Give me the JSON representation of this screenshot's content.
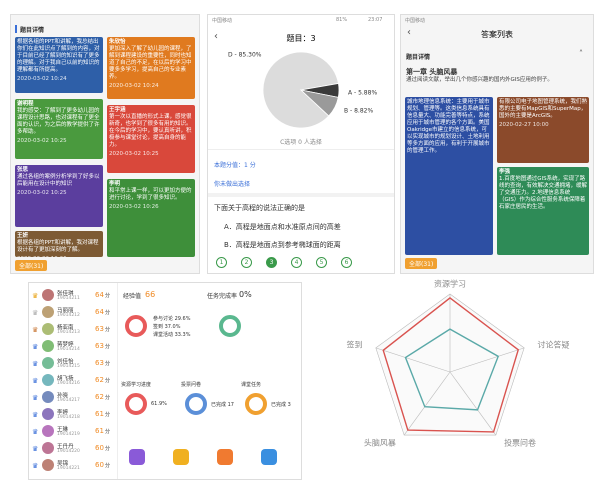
{
  "panel_left": {
    "header": "题目详情",
    "cards": [
      {
        "name": "",
        "text": "根据各组的PPT和讲解，我总结出你们在此知识点了解到的内容，对于目前已经了解到的知识有了更多的理解。对于我自己以前的知识的理解都有所提高。",
        "date": "2020-03-02 10:24",
        "color": "#2e5fa8"
      },
      {
        "name": "谢明程",
        "text": "我的感受：了解到了更多幼儿园的课程设计思路，也对课程有了更全面的认识，为之后的教学提供了许多帮助。",
        "date": "2020-03-02 10:25",
        "color": "#4a9a3e"
      },
      {
        "name": "张思",
        "text": "通过各组的案例分析学到了好多以后能用在设计中的知识",
        "date": "2020-03-02 10:25",
        "color": "#5b3e9e"
      },
      {
        "name": "王妍",
        "text": "根据各组的PPT和讲解，我对课程设计有了更加深刻的了解。",
        "date": "2020-03-02 10:26",
        "color": "#7d5a34"
      },
      {
        "name": "朱欣怡",
        "text": "更加深入了解了幼儿园的课程，了解到课程建设的重要性，同时也知道了自己的不足，在以后的学习中要多多学习，提高自己的专业素养。",
        "date": "2020-03-02 10:24",
        "color": "#e07a1f"
      },
      {
        "name": "王宇涵",
        "text": "第一次以直播的形式上课，感觉很新奇，也学到了很多有用的知识。在今后的学习中，要认真听讲，积极参与课堂讨论，提高自身的能力。",
        "date": "2020-03-02 10:25",
        "color": "#d9483b"
      },
      {
        "name": "李明",
        "text": "和平常上课一样，可以更加方便的进行讨论，学到了很多知识。",
        "date": "2020-03-02 10:26",
        "color": "#3e8f3a"
      }
    ],
    "button": "全部(31)"
  },
  "panel_mid": {
    "carrier": "中国移动",
    "battery": "81%",
    "time": "23:07",
    "title": "题目：3",
    "note": "C选项 0 人选择",
    "score": "本题分值：1 分",
    "status": "你未做出选择",
    "question": "下面关于高程的说法正确的是",
    "options": [
      "A．高程是地面点和水准原点间的高差",
      "B．高程是地面点到参考椭球面的距离"
    ],
    "pages": [
      "1",
      "2",
      "3",
      "4",
      "5",
      "6"
    ]
  },
  "panel_right": {
    "carrier": "中国移动",
    "title": "答案列表",
    "section": "题目详情",
    "chapter": "第一章 头脑风暴",
    "prompt": "通过阅读文献，举出几个你感兴趣的国内外GIS应用的例子。",
    "cards": [
      {
        "name": "",
        "text": "城市地理信息系统：主要用于城市规划、管理等。这类信息系统具有信息量大、功能完善等特点，系统应用于城市管理的各个方面。美国Oakridge市建立的信息系统，可以实现城市的规划设计、土地利用等多方面的应用，有利于开展城市的管理工作。",
        "date": "",
        "color": "#2d4fa3"
      },
      {
        "name": "",
        "text": "有限公司电子地图管理系统，我们熟悉的主要有MapGIS和SuperMap，国外的主要是ArcGIS。",
        "date": "2020-02-27 10:00",
        "color": "#8b4a2b"
      },
      {
        "name": "李强",
        "text": "1.百度地图通过GIS系统，实现了路线的查询，有效解决交通拥堵，缓解了交通压力。2.地理信息系统（GIS）作为综合性服务系统保障着石家庄居民的生活。",
        "date": "",
        "color": "#2e8b57"
      }
    ],
    "button": "全部(31)"
  },
  "dashboard": {
    "unit": "分",
    "ranking": [
      {
        "name": "张佳琪",
        "id": "19014211"
      },
      {
        "name": "马丽丽",
        "id": "19014212"
      },
      {
        "name": "杨亚南",
        "id": "19014213"
      },
      {
        "name": "蒋梦婷",
        "id": "19014214"
      },
      {
        "name": "刘佳怡",
        "id": "19014215"
      },
      {
        "name": "胡飞扬",
        "id": "19014216"
      },
      {
        "name": "孙晓",
        "id": "19014217"
      },
      {
        "name": "李婷",
        "id": "19014218"
      },
      {
        "name": "王琳",
        "id": "19014219"
      },
      {
        "name": "王丹丹",
        "id": "19014220"
      },
      {
        "name": "吴锦",
        "id": "19014221"
      }
    ],
    "scores": [
      "64",
      "64",
      "63",
      "63",
      "63",
      "62",
      "62",
      "61",
      "61",
      "60",
      "60"
    ],
    "exp_label": "经验值",
    "exp_value": "66",
    "task_label": "任务完成率",
    "task_value": "0%",
    "legend": [
      "参与讨论 29.6%",
      "签到 37.0%",
      "课堂活动 33.3%"
    ],
    "rings": [
      {
        "label": "资源学习进度",
        "value": "61.9%"
      },
      {
        "label": "投票问卷",
        "value": "已完成 17"
      },
      {
        "label": "课堂任务",
        "value": "已完成 3"
      }
    ]
  },
  "chart_data": [
    {
      "type": "pie",
      "values": [
        85.3,
        5.88,
        8.82
      ],
      "value_labels": [
        "D - 85.30%",
        "A - 5.88%",
        "B - 8.82%"
      ],
      "colors": [
        "#dcdcdc",
        "#3a3a3a",
        "#9a9a9a"
      ]
    },
    {
      "type": "radar",
      "categories": [
        "资源学习",
        "讨论答疑",
        "投票问卷",
        "头脑风暴",
        "签到"
      ],
      "rlim": [
        0,
        100
      ],
      "series": [
        {
          "color": "#d9534f",
          "values": [
            95,
            92,
            95,
            92,
            90
          ]
        },
        {
          "color": "#5aa9a8",
          "values": [
            55,
            65,
            60,
            55,
            60
          ]
        }
      ]
    }
  ]
}
